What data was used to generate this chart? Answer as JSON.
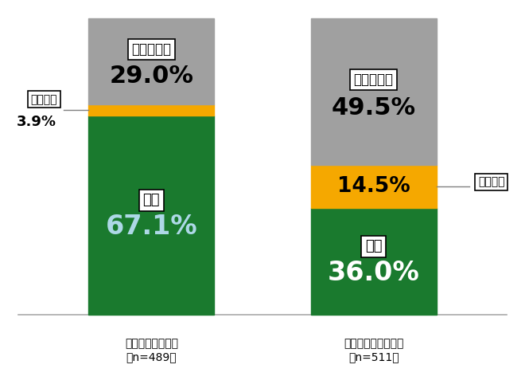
{
  "groups": [
    "教育格差を感じる\n（n=489）",
    "教育格差を感じない\n（n=511）"
  ],
  "seg_omou": [
    67.1,
    36.0
  ],
  "seg_omowanai": [
    3.9,
    14.5
  ],
  "seg_wakaranai": [
    29.0,
    49.5
  ],
  "color_omou": "#1a7a2e",
  "color_omowanai": "#f5a800",
  "color_wakaranai": "#a0a0a0",
  "bg_color": "#ffffff",
  "label_omou": "思う",
  "label_omowanai": "思わない",
  "label_wakaranai": "わからない",
  "pct_color_omou_bar1": "#c8e6f5",
  "pct_color_omou_bar2": "#ffffff",
  "pct_color_wakaranai_bar1": "#000000",
  "pct_color_wakaranai_bar2": "#000000",
  "pct_color_omowanai_bar2": "#000000"
}
